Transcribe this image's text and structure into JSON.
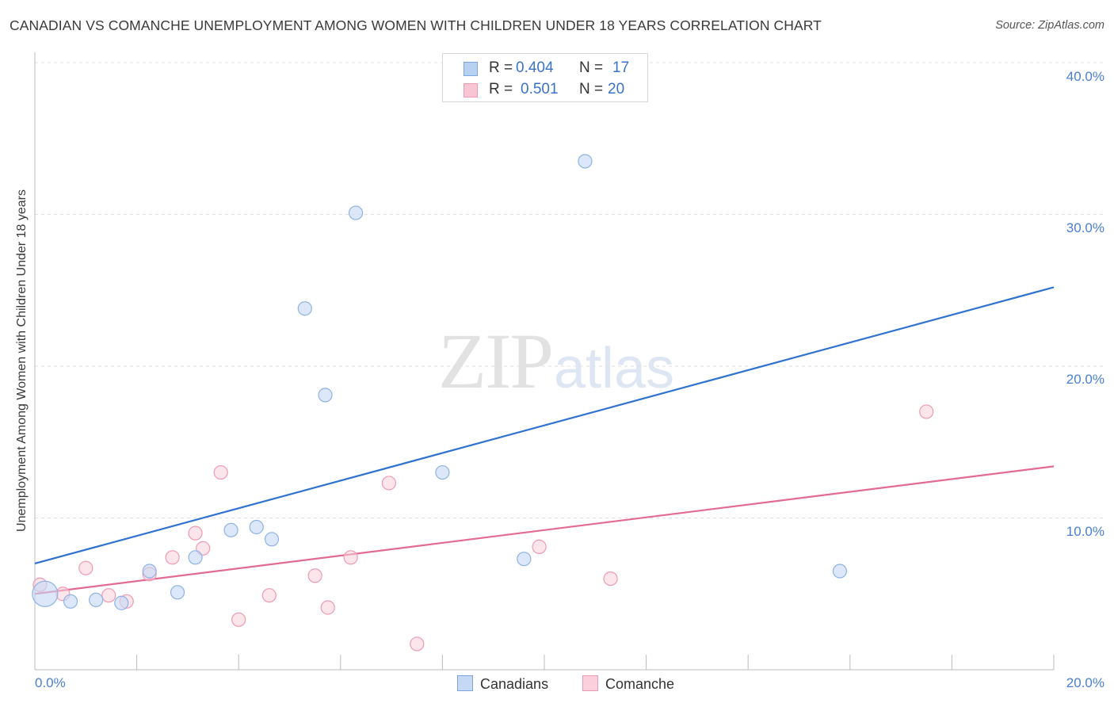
{
  "title": "CANADIAN VS COMANCHE UNEMPLOYMENT AMONG WOMEN WITH CHILDREN UNDER 18 YEARS CORRELATION CHART",
  "source": "Source: ZipAtlas.com",
  "watermark": {
    "zip": "ZIP",
    "atlas": "atlas"
  },
  "stats": {
    "canadians": {
      "r_label": "R =",
      "r_value": "0.404",
      "n_label": "N =",
      "n_value": "17",
      "color": "#b7d1f3"
    },
    "comanche": {
      "r_label": "R =",
      "r_value": "0.501",
      "n_label": "N =",
      "n_value": "20",
      "color": "#f8c5d4"
    }
  },
  "colors": {
    "blue_fill": "#c5d9f5",
    "blue_stroke": "#8fb2e3",
    "blue_line": "#2f72d0",
    "pink_fill": "#fbd0dc",
    "pink_stroke": "#f09ab2",
    "pink_line": "#e36a92",
    "grid": "#e0e0e0",
    "axis": "#bbbbbb",
    "tick_text": "#4a7fd0"
  },
  "chart_data": {
    "type": "scatter",
    "title": "CANADIAN VS COMANCHE UNEMPLOYMENT AMONG WOMEN WITH CHILDREN UNDER 18 YEARS CORRELATION CHART",
    "xlabel": "",
    "ylabel": "Unemployment Among Women with Children Under 18 years",
    "xlim": [
      0,
      20
    ],
    "ylim": [
      0,
      40
    ],
    "x_tick_labels": [
      "0.0%",
      "20.0%"
    ],
    "y_ticks": [
      10,
      20,
      30,
      40
    ],
    "y_tick_labels": [
      "10.0%",
      "20.0%",
      "30.0%",
      "40.0%"
    ],
    "grid": true,
    "legend_position": "bottom-center",
    "series": [
      {
        "name": "Canadians",
        "r": 0.404,
        "n": 17,
        "points": [
          {
            "x": 0.2,
            "y": 5.0,
            "big": true
          },
          {
            "x": 0.7,
            "y": 4.5
          },
          {
            "x": 1.2,
            "y": 4.6
          },
          {
            "x": 1.7,
            "y": 4.4
          },
          {
            "x": 2.25,
            "y": 6.5
          },
          {
            "x": 2.8,
            "y": 5.1
          },
          {
            "x": 3.15,
            "y": 7.4
          },
          {
            "x": 3.85,
            "y": 9.2
          },
          {
            "x": 4.35,
            "y": 9.4
          },
          {
            "x": 4.65,
            "y": 8.6
          },
          {
            "x": 5.3,
            "y": 23.8
          },
          {
            "x": 5.7,
            "y": 18.1
          },
          {
            "x": 6.3,
            "y": 30.1
          },
          {
            "x": 8.0,
            "y": 13.0
          },
          {
            "x": 9.6,
            "y": 7.3
          },
          {
            "x": 10.8,
            "y": 33.5
          },
          {
            "x": 15.8,
            "y": 6.5
          }
        ],
        "trend": {
          "x0": 0,
          "y0": 7.0,
          "x1": 20,
          "y1": 25.2
        }
      },
      {
        "name": "Comanche",
        "r": 0.501,
        "n": 20,
        "points": [
          {
            "x": 0.1,
            "y": 5.6
          },
          {
            "x": 0.55,
            "y": 5.0
          },
          {
            "x": 1.0,
            "y": 6.7
          },
          {
            "x": 1.45,
            "y": 4.9
          },
          {
            "x": 1.8,
            "y": 4.5
          },
          {
            "x": 2.25,
            "y": 6.3
          },
          {
            "x": 2.7,
            "y": 7.4
          },
          {
            "x": 3.15,
            "y": 9.0
          },
          {
            "x": 3.3,
            "y": 8.0
          },
          {
            "x": 3.65,
            "y": 13.0
          },
          {
            "x": 4.0,
            "y": 3.3
          },
          {
            "x": 4.6,
            "y": 4.9
          },
          {
            "x": 5.5,
            "y": 6.2
          },
          {
            "x": 5.75,
            "y": 4.1
          },
          {
            "x": 6.2,
            "y": 7.4
          },
          {
            "x": 6.95,
            "y": 12.3
          },
          {
            "x": 7.5,
            "y": 1.7
          },
          {
            "x": 9.9,
            "y": 8.1
          },
          {
            "x": 11.3,
            "y": 6.0
          },
          {
            "x": 17.5,
            "y": 17.0
          }
        ],
        "trend": {
          "x0": 0,
          "y0": 5.0,
          "x1": 20,
          "y1": 13.4
        }
      }
    ]
  },
  "legend": {
    "canadians": "Canadians",
    "comanche": "Comanche"
  }
}
